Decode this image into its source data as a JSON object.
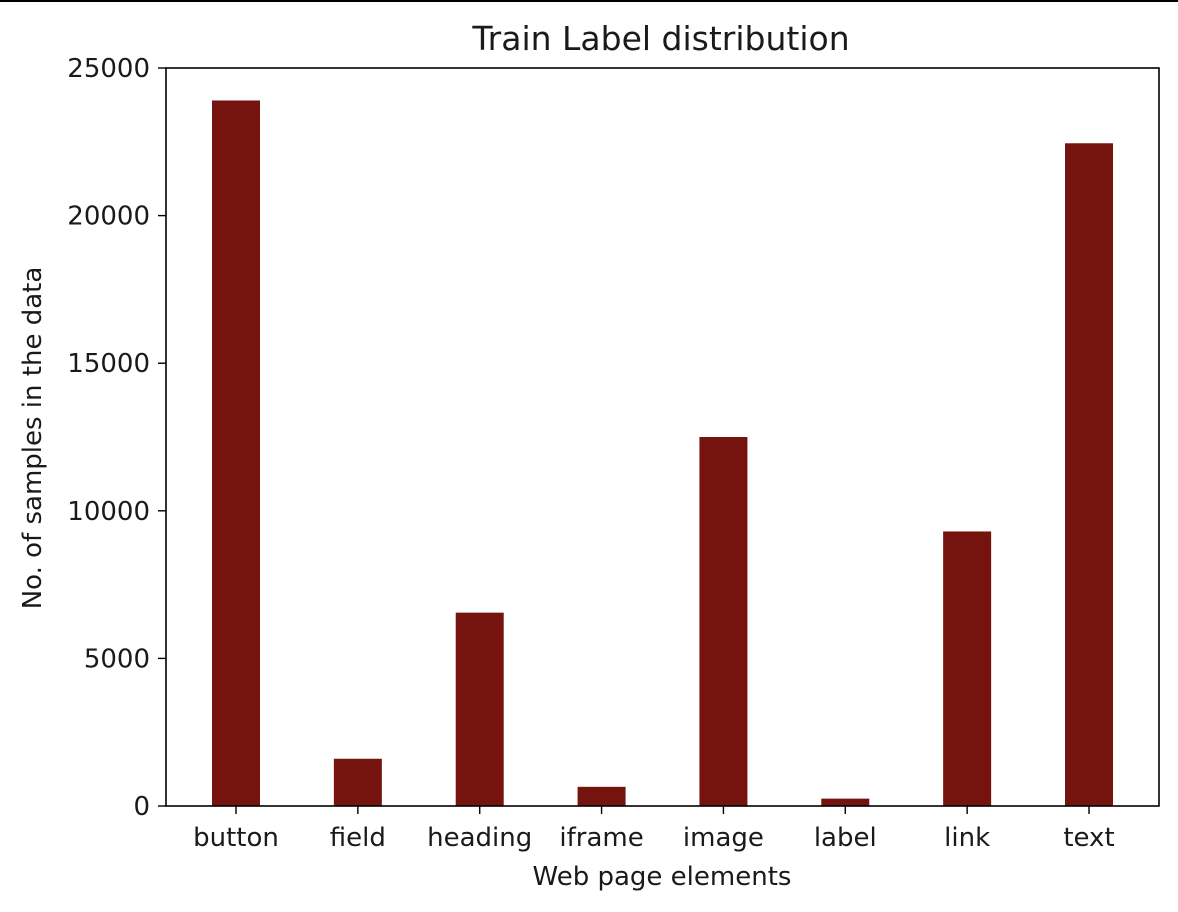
{
  "chart_data": {
    "type": "bar",
    "title": "Train Label distribution",
    "xlabel": "Web page elements",
    "ylabel": "No. of samples in the data",
    "categories": [
      "button",
      "field",
      "heading",
      "iframe",
      "image",
      "label",
      "link",
      "text"
    ],
    "values": [
      23900,
      1600,
      6550,
      650,
      12500,
      250,
      9300,
      22450
    ],
    "ylim": [
      0,
      25000
    ],
    "yticks": [
      0,
      5000,
      10000,
      15000,
      20000,
      25000
    ],
    "ytick_labels": [
      "0",
      "5000",
      "10000",
      "15000",
      "20000",
      "25000"
    ],
    "bar_color": "#75140e",
    "grid": false,
    "legend": "none"
  }
}
